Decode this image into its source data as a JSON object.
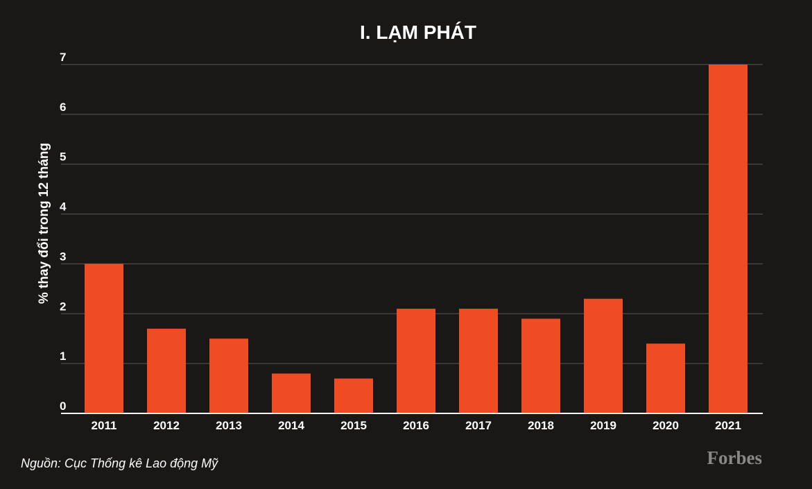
{
  "colors": {
    "background": "#1a1817",
    "bar": "#ef4c23",
    "grid": "#5a5755",
    "text": "#ffffff",
    "brand": "#8a8785"
  },
  "source": "Nguồn: Cục Thống kê Lao động Mỹ",
  "brand": "Forbes",
  "chart_data": {
    "type": "bar",
    "title": "I. LẠM PHÁT",
    "xlabel": "",
    "ylabel": "% thay đổi trong 12 tháng",
    "categories": [
      "2011",
      "2012",
      "2013",
      "2014",
      "2015",
      "2016",
      "2017",
      "2018",
      "2019",
      "2020",
      "2021"
    ],
    "values": [
      3.0,
      1.7,
      1.5,
      0.8,
      0.7,
      2.1,
      2.1,
      1.9,
      2.3,
      1.4,
      7.0
    ],
    "ylim": [
      0,
      7
    ],
    "yticks": [
      "0",
      "1",
      "2",
      "3",
      "4",
      "5",
      "6",
      "7"
    ],
    "grid": true,
    "legend": "none"
  }
}
